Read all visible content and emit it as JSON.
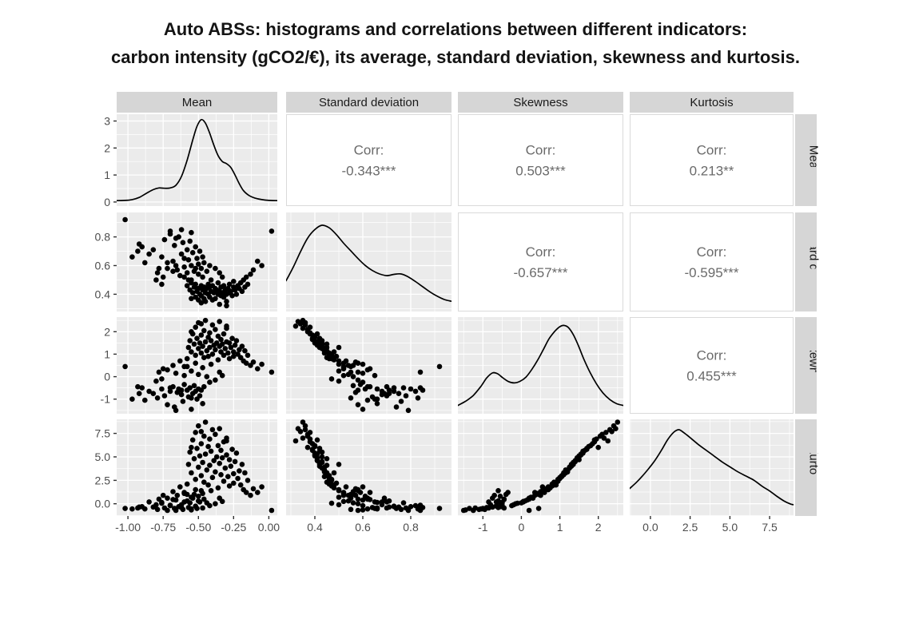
{
  "title": {
    "line1": "Auto ABSs: histograms and correlations between different indicators:",
    "line2": "carbon intensity (gCO2/€), its average, standard deviation, skewness and kurtosis."
  },
  "colors": {
    "panel_bg": "#EBEBEB",
    "grid": "#FFFFFF",
    "strip_bg": "#D6D6D6",
    "strip_text": "#1A1A1A",
    "corr_bg": "#FFFFFF",
    "corr_border": "#DADADA",
    "corr_text": "#6A6A6A",
    "axis_text": "#4D4D4D",
    "tick": "#333333",
    "point": "#000000",
    "curve": "#000000"
  },
  "chart_data": {
    "type": "scatterplot-matrix",
    "variables": [
      {
        "key": "mean",
        "label": "Mean",
        "range": [
          -1.08,
          0.06
        ],
        "ticks": {
          "values": [
            -1,
            -0.75,
            -0.5,
            -0.25,
            0
          ],
          "labels": [
            "-1.00",
            "-0.75",
            "-0.50",
            "-0.25",
            "0.00"
          ]
        }
      },
      {
        "key": "sd",
        "label": "Standard deviation",
        "range": [
          0.28,
          0.97
        ],
        "ticks": {
          "values": [
            0.4,
            0.6,
            0.8
          ],
          "labels": [
            "0.4",
            "0.6",
            "0.8"
          ]
        }
      },
      {
        "key": "skew",
        "label": "Skewness",
        "range": [
          -1.65,
          2.65
        ],
        "ticks": {
          "values": [
            -1,
            0,
            1,
            2
          ],
          "labels": [
            "-1",
            "0",
            "1",
            "2"
          ]
        }
      },
      {
        "key": "kurt",
        "label": "Kurtosis",
        "range": [
          -1.3,
          9.0
        ],
        "ticks": {
          "values": [
            0,
            2.5,
            5,
            7.5
          ],
          "labels": [
            "0.0",
            "2.5",
            "5.0",
            "7.5"
          ]
        }
      }
    ],
    "correlations": [
      {
        "row": "mean",
        "col": "sd",
        "label": "Corr:",
        "value": "-0.343***"
      },
      {
        "row": "mean",
        "col": "skew",
        "label": "Corr:",
        "value": "0.503***"
      },
      {
        "row": "mean",
        "col": "kurt",
        "label": "Corr:",
        "value": "0.213**"
      },
      {
        "row": "sd",
        "col": "skew",
        "label": "Corr:",
        "value": "-0.657***"
      },
      {
        "row": "sd",
        "col": "kurt",
        "label": "Corr:",
        "value": "-0.595***"
      },
      {
        "row": "skew",
        "col": "kurt",
        "label": "Corr:",
        "value": "0.455***"
      }
    ],
    "densities": {
      "mean": {
        "y_range": [
          -0.15,
          3.25
        ],
        "y_ticks": {
          "values": [
            0,
            1,
            2,
            3
          ],
          "labels": [
            "0",
            "1",
            "2",
            "3"
          ]
        },
        "curve": [
          [
            -1.08,
            0.05
          ],
          [
            -1.02,
            0.06
          ],
          [
            -0.97,
            0.09
          ],
          [
            -0.92,
            0.17
          ],
          [
            -0.87,
            0.32
          ],
          [
            -0.82,
            0.46
          ],
          [
            -0.78,
            0.52
          ],
          [
            -0.74,
            0.51
          ],
          [
            -0.7,
            0.52
          ],
          [
            -0.66,
            0.62
          ],
          [
            -0.62,
            0.95
          ],
          [
            -0.58,
            1.55
          ],
          [
            -0.54,
            2.3
          ],
          [
            -0.51,
            2.8
          ],
          [
            -0.48,
            3.05
          ],
          [
            -0.45,
            2.92
          ],
          [
            -0.42,
            2.55
          ],
          [
            -0.39,
            2.1
          ],
          [
            -0.36,
            1.72
          ],
          [
            -0.33,
            1.5
          ],
          [
            -0.3,
            1.42
          ],
          [
            -0.27,
            1.28
          ],
          [
            -0.24,
            1.0
          ],
          [
            -0.21,
            0.68
          ],
          [
            -0.18,
            0.42
          ],
          [
            -0.14,
            0.24
          ],
          [
            -0.1,
            0.15
          ],
          [
            -0.05,
            0.09
          ],
          [
            0.0,
            0.06
          ],
          [
            0.06,
            0.05
          ]
        ]
      },
      "sd": {
        "y_range": [
          -0.06,
          1.1
        ],
        "curve": [
          [
            0.28,
            0.3
          ],
          [
            0.31,
            0.46
          ],
          [
            0.34,
            0.64
          ],
          [
            0.37,
            0.8
          ],
          [
            0.4,
            0.9
          ],
          [
            0.43,
            0.95
          ],
          [
            0.46,
            0.92
          ],
          [
            0.49,
            0.84
          ],
          [
            0.52,
            0.74
          ],
          [
            0.55,
            0.65
          ],
          [
            0.58,
            0.56
          ],
          [
            0.61,
            0.48
          ],
          [
            0.64,
            0.42
          ],
          [
            0.67,
            0.38
          ],
          [
            0.7,
            0.36
          ],
          [
            0.73,
            0.375
          ],
          [
            0.76,
            0.38
          ],
          [
            0.79,
            0.345
          ],
          [
            0.82,
            0.29
          ],
          [
            0.85,
            0.23
          ],
          [
            0.88,
            0.17
          ],
          [
            0.91,
            0.12
          ],
          [
            0.94,
            0.08
          ],
          [
            0.97,
            0.06
          ]
        ]
      },
      "skew": {
        "y_range": [
          -0.06,
          1.1
        ],
        "curve": [
          [
            -1.65,
            0.04
          ],
          [
            -1.45,
            0.09
          ],
          [
            -1.25,
            0.16
          ],
          [
            -1.05,
            0.27
          ],
          [
            -0.9,
            0.37
          ],
          [
            -0.75,
            0.43
          ],
          [
            -0.62,
            0.42
          ],
          [
            -0.48,
            0.37
          ],
          [
            -0.33,
            0.325
          ],
          [
            -0.18,
            0.31
          ],
          [
            -0.03,
            0.33
          ],
          [
            0.12,
            0.38
          ],
          [
            0.27,
            0.47
          ],
          [
            0.42,
            0.58
          ],
          [
            0.57,
            0.71
          ],
          [
            0.72,
            0.84
          ],
          [
            0.87,
            0.93
          ],
          [
            1.0,
            0.985
          ],
          [
            1.1,
            1.0
          ],
          [
            1.22,
            0.975
          ],
          [
            1.35,
            0.89
          ],
          [
            1.48,
            0.76
          ],
          [
            1.62,
            0.6
          ],
          [
            1.78,
            0.44
          ],
          [
            1.95,
            0.3
          ],
          [
            2.12,
            0.19
          ],
          [
            2.3,
            0.11
          ],
          [
            2.48,
            0.06
          ],
          [
            2.65,
            0.04
          ]
        ]
      },
      "kurt": {
        "y_range": [
          -0.06,
          1.1
        ],
        "curve": [
          [
            -1.3,
            0.27
          ],
          [
            -0.9,
            0.34
          ],
          [
            -0.5,
            0.42
          ],
          [
            -0.1,
            0.51
          ],
          [
            0.3,
            0.61
          ],
          [
            0.7,
            0.73
          ],
          [
            1.1,
            0.86
          ],
          [
            1.5,
            0.95
          ],
          [
            1.8,
            0.975
          ],
          [
            2.1,
            0.94
          ],
          [
            2.5,
            0.88
          ],
          [
            3.0,
            0.8
          ],
          [
            3.5,
            0.73
          ],
          [
            4.0,
            0.66
          ],
          [
            4.5,
            0.59
          ],
          [
            5.0,
            0.53
          ],
          [
            5.5,
            0.47
          ],
          [
            6.0,
            0.42
          ],
          [
            6.5,
            0.37
          ],
          [
            7.0,
            0.3
          ],
          [
            7.5,
            0.24
          ],
          [
            8.0,
            0.17
          ],
          [
            8.4,
            0.12
          ],
          [
            8.8,
            0.085
          ],
          [
            9.0,
            0.075
          ]
        ]
      }
    },
    "points": [
      [
        -0.88,
        0.62,
        -1.05,
        -0.55
      ],
      [
        -0.82,
        0.71,
        -0.75,
        -0.35
      ],
      [
        -0.79,
        0.55,
        -0.95,
        -0.6
      ],
      [
        -0.76,
        0.66,
        -0.55,
        0.15
      ],
      [
        -0.74,
        0.78,
        -0.85,
        -0.45
      ],
      [
        -0.72,
        0.58,
        -1.25,
        -0.7
      ],
      [
        -0.7,
        0.82,
        -0.65,
        -0.2
      ],
      [
        -0.68,
        0.63,
        -0.45,
        0.45
      ],
      [
        -0.67,
        0.74,
        -1.35,
        -0.5
      ],
      [
        -0.65,
        0.57,
        -0.7,
        0.9
      ],
      [
        -0.64,
        0.8,
        -0.55,
        -0.3
      ],
      [
        -0.62,
        0.68,
        -0.8,
        -0.1
      ],
      [
        -0.61,
        0.76,
        -1.1,
        -0.6
      ],
      [
        -0.6,
        0.59,
        -0.35,
        1.2
      ],
      [
        -0.58,
        0.71,
        -0.6,
        0.3
      ],
      [
        -0.57,
        0.64,
        -0.9,
        -0.4
      ],
      [
        -0.56,
        0.77,
        -0.5,
        0.1
      ],
      [
        -0.55,
        0.6,
        -1.45,
        -0.65
      ],
      [
        -0.54,
        0.69,
        -0.75,
        0.6
      ],
      [
        -0.53,
        0.56,
        -0.4,
        1.0
      ],
      [
        -0.52,
        0.73,
        -0.65,
        -0.25
      ],
      [
        -0.51,
        0.65,
        -1.0,
        -0.5
      ],
      [
        -0.5,
        0.61,
        -0.55,
        0.8
      ],
      [
        -0.49,
        0.7,
        -0.85,
        0.2
      ],
      [
        -0.48,
        0.58,
        -0.6,
        1.4
      ],
      [
        -0.47,
        0.66,
        -1.2,
        -0.45
      ],
      [
        -0.46,
        0.62,
        -0.45,
        0.5
      ],
      [
        -0.62,
        0.85,
        -0.6,
        -0.4
      ],
      [
        -0.7,
        0.84,
        -0.5,
        -0.15
      ],
      [
        -0.55,
        0.83,
        -0.95,
        -0.55
      ],
      [
        -0.85,
        0.68,
        -0.65,
        0.2
      ],
      [
        -0.9,
        0.73,
        -0.5,
        -0.3
      ],
      [
        -0.93,
        0.7,
        -0.45,
        -0.45
      ],
      [
        -0.66,
        0.79,
        -1.5,
        -0.7
      ],
      [
        -0.6,
        0.52,
        0.45,
        1.1
      ],
      [
        -0.58,
        0.46,
        0.8,
        2.1
      ],
      [
        -0.57,
        0.5,
        1.3,
        4.2
      ],
      [
        -0.56,
        0.43,
        1.6,
        5.5
      ],
      [
        -0.55,
        0.48,
        1.1,
        3.3
      ],
      [
        -0.54,
        0.41,
        1.9,
        6.8
      ],
      [
        -0.53,
        0.45,
        1.45,
        4.8
      ],
      [
        -0.52,
        0.38,
        2.2,
        7.6
      ],
      [
        -0.52,
        0.47,
        0.95,
        2.6
      ],
      [
        -0.51,
        0.42,
        1.7,
        5.9
      ],
      [
        -0.5,
        0.44,
        1.25,
        3.9
      ],
      [
        -0.5,
        0.36,
        2.4,
        8.3
      ],
      [
        -0.49,
        0.4,
        1.5,
        5.1
      ],
      [
        -0.48,
        0.46,
        1.05,
        3.0
      ],
      [
        -0.48,
        0.39,
        1.85,
        6.4
      ],
      [
        -0.47,
        0.43,
        1.35,
        4.4
      ],
      [
        -0.46,
        0.37,
        2.05,
        7.2
      ],
      [
        -0.46,
        0.45,
        0.85,
        2.3
      ],
      [
        -0.45,
        0.41,
        1.55,
        5.3
      ],
      [
        -0.45,
        0.35,
        2.5,
        8.7
      ],
      [
        -0.44,
        0.44,
        1.15,
        3.6
      ],
      [
        -0.43,
        0.4,
        1.75,
        6.1
      ],
      [
        -0.43,
        0.47,
        0.9,
        2.0
      ],
      [
        -0.42,
        0.38,
        1.95,
        6.9
      ],
      [
        -0.42,
        0.45,
        1.3,
        4.1
      ],
      [
        -0.41,
        0.42,
        1.6,
        5.6
      ],
      [
        -0.4,
        0.36,
        2.3,
        7.9
      ],
      [
        -0.4,
        0.46,
        1.0,
        2.8
      ],
      [
        -0.39,
        0.41,
        1.4,
        4.6
      ],
      [
        -0.38,
        0.44,
        1.2,
        3.4
      ],
      [
        -0.38,
        0.37,
        2.1,
        7.4
      ],
      [
        -0.37,
        0.43,
        1.5,
        5.0
      ],
      [
        -0.36,
        0.4,
        1.8,
        6.2
      ],
      [
        -0.36,
        0.48,
        0.75,
        1.7
      ],
      [
        -0.35,
        0.42,
        1.35,
        4.3
      ],
      [
        -0.34,
        0.39,
        1.65,
        5.7
      ],
      [
        -0.34,
        0.45,
        1.1,
        3.1
      ],
      [
        -0.33,
        0.41,
        1.45,
        4.9
      ],
      [
        -0.32,
        0.38,
        1.9,
        6.6
      ],
      [
        -0.32,
        0.46,
        0.95,
        2.4
      ],
      [
        -0.31,
        0.43,
        1.25,
        3.8
      ],
      [
        -0.3,
        0.4,
        1.55,
        5.2
      ],
      [
        -0.3,
        0.35,
        2.15,
        7.0
      ],
      [
        -0.29,
        0.44,
        1.05,
        2.9
      ],
      [
        -0.28,
        0.41,
        1.5,
        4.7
      ],
      [
        -0.28,
        0.47,
        0.8,
        1.9
      ],
      [
        -0.27,
        0.42,
        1.3,
        4.0
      ],
      [
        -0.26,
        0.39,
        1.7,
        5.8
      ],
      [
        -0.25,
        0.45,
        1.1,
        3.2
      ],
      [
        -0.25,
        0.49,
        0.9,
        2.2
      ],
      [
        -0.24,
        0.43,
        1.4,
        4.5
      ],
      [
        -0.23,
        0.4,
        1.6,
        5.4
      ],
      [
        -0.22,
        0.46,
        1.0,
        2.7
      ],
      [
        -0.21,
        0.44,
        1.2,
        3.5
      ],
      [
        -0.2,
        0.48,
        0.85,
        2.0
      ],
      [
        -0.19,
        0.42,
        1.35,
        4.2
      ],
      [
        -0.18,
        0.5,
        0.7,
        1.5
      ],
      [
        -0.17,
        0.45,
        1.15,
        3.3
      ],
      [
        -0.16,
        0.52,
        0.6,
        1.2
      ],
      [
        -0.15,
        0.47,
        0.95,
        2.5
      ],
      [
        -0.35,
        0.33,
        2.45,
        8.0
      ],
      [
        -0.48,
        0.34,
        2.35,
        7.7
      ],
      [
        -0.55,
        0.37,
        2.0,
        6.0
      ],
      [
        -0.3,
        0.32,
        2.25,
        6.7
      ],
      [
        -0.13,
        0.54,
        0.5,
        0.9
      ],
      [
        -0.11,
        0.57,
        0.65,
        1.6
      ],
      [
        -0.72,
        0.62,
        0.3,
        0.6
      ],
      [
        -0.68,
        0.56,
        0.5,
        1.3
      ],
      [
        -0.66,
        0.6,
        0.15,
        0.4
      ],
      [
        -0.63,
        0.53,
        0.7,
        1.8
      ],
      [
        -0.6,
        0.65,
        0.05,
        0.2
      ],
      [
        -0.58,
        0.55,
        0.45,
        1.0
      ],
      [
        -0.55,
        0.5,
        0.25,
        0.7
      ],
      [
        -0.52,
        0.58,
        0.6,
        1.5
      ],
      [
        -0.5,
        0.54,
        0.1,
        0.3
      ],
      [
        -0.47,
        0.52,
        0.4,
        1.1
      ],
      [
        -0.44,
        0.56,
        0.0,
        0.1
      ],
      [
        -0.41,
        0.5,
        0.55,
        1.4
      ],
      [
        -0.78,
        0.58,
        0.2,
        0.5
      ],
      [
        -0.75,
        0.52,
        0.35,
        0.9
      ],
      [
        -0.35,
        0.55,
        0.2,
        0.6
      ],
      [
        -0.33,
        0.52,
        0.05,
        0.25
      ],
      [
        -0.8,
        0.5,
        -0.2,
        -0.1
      ],
      [
        -0.76,
        0.47,
        -0.1,
        0.05
      ],
      [
        -0.42,
        0.6,
        -0.25,
        -0.2
      ],
      [
        -0.38,
        0.58,
        -0.15,
        0.0
      ],
      [
        -1.02,
        0.92,
        0.45,
        -0.5
      ],
      [
        0.02,
        0.84,
        0.2,
        -0.7
      ],
      [
        -0.05,
        0.6,
        0.55,
        1.8
      ],
      [
        -0.08,
        0.63,
        0.35,
        1.2
      ],
      [
        -0.92,
        0.75,
        -0.75,
        -0.35
      ],
      [
        -0.97,
        0.66,
        -1.0,
        -0.55
      ]
    ]
  }
}
